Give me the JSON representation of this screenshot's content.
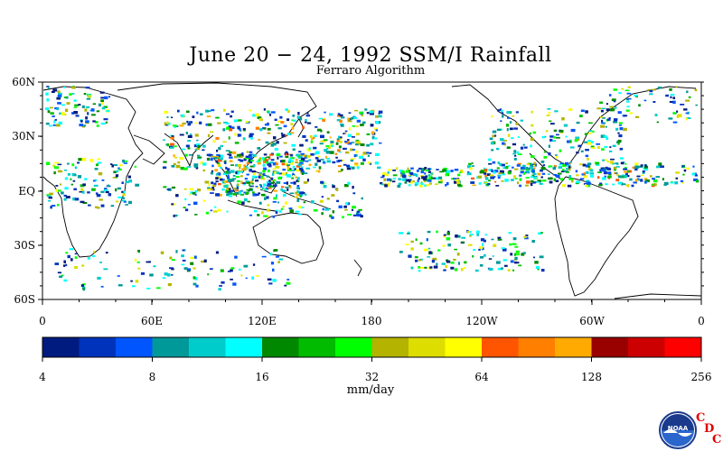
{
  "map": {
    "title": "June 20 − 24, 1992 SSM/I Rainfall",
    "subtitle": "Ferraro Algorithm",
    "lat_labels": [
      "60N",
      "30N",
      "EQ",
      "30S",
      "60S"
    ],
    "lon_labels": [
      "0",
      "60E",
      "120E",
      "180",
      "120W",
      "60W",
      "0"
    ]
  },
  "colorbar": {
    "units": "mm/day",
    "tick_labels": [
      "4",
      "8",
      "16",
      "32",
      "64",
      "128",
      "256"
    ],
    "colors": [
      "#001b80",
      "#0033bb",
      "#0055ff",
      "#009999",
      "#00cccc",
      "#00ffff",
      "#008800",
      "#00bb00",
      "#00ff00",
      "#b3b300",
      "#dddd00",
      "#ffff00",
      "#ff5500",
      "#ff7f00",
      "#ffaa00",
      "#990000",
      "#cc0000",
      "#ff0000"
    ]
  },
  "logo": {
    "text": "NOAA",
    "letters": [
      "C",
      "D",
      "C"
    ]
  }
}
